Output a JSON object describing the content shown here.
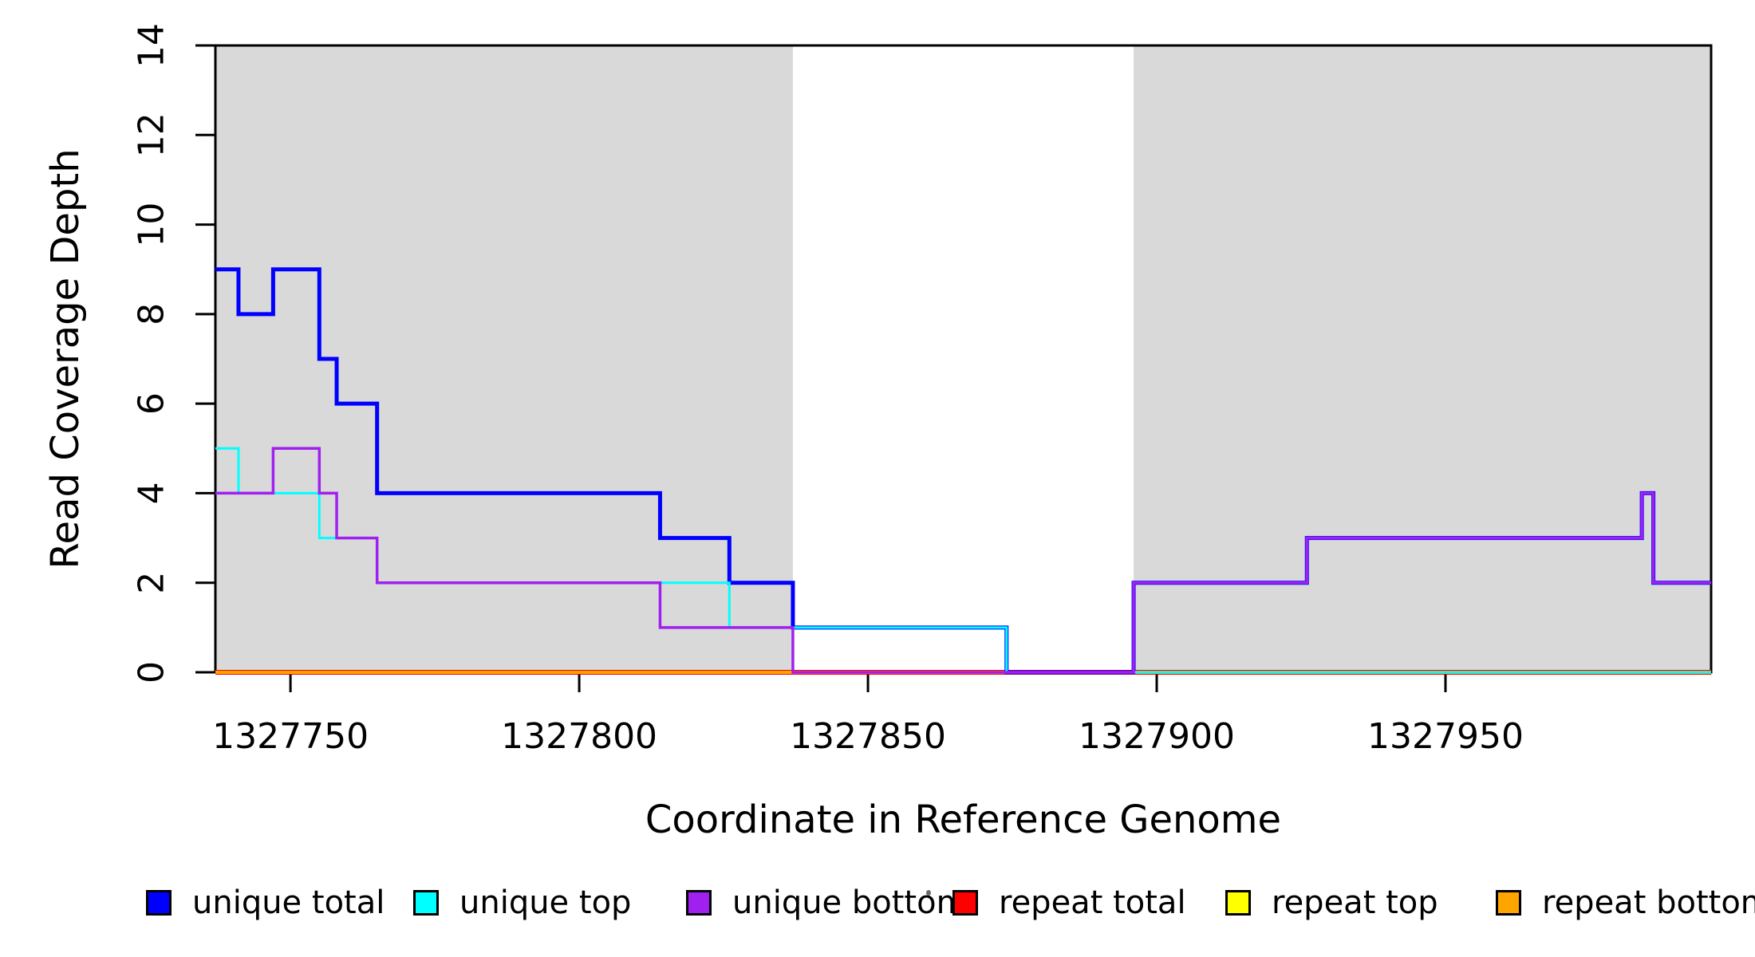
{
  "chart_data": {
    "type": "line",
    "subtype": "step-coverage",
    "title": "",
    "xlabel": "Coordinate in Reference Genome",
    "ylabel": "Read Coverage Depth",
    "xlim": [
      1327737,
      1327996
    ],
    "ylim": [
      0,
      14
    ],
    "x_ticks": [
      1327750,
      1327800,
      1327850,
      1327900,
      1327950
    ],
    "y_ticks": [
      0,
      2,
      4,
      6,
      8,
      10,
      12,
      14
    ],
    "grid": false,
    "legend_position": "bottom",
    "plot_background": "#ffffff",
    "shaded_region_color": "#d9d9d9",
    "shaded_regions": [
      {
        "x0": 1327737,
        "x1": 1327837
      },
      {
        "x0": 1327896,
        "x1": 1327996
      }
    ],
    "series": [
      {
        "name": "repeat total",
        "color": "#FF0000",
        "width": 6,
        "points": [
          [
            1327737,
            0
          ]
        ]
      },
      {
        "name": "repeat top",
        "color": "#FFFF00",
        "width": 3,
        "points": [
          [
            1327737,
            0
          ]
        ]
      },
      {
        "name": "repeat bottom",
        "color": "#FFA500",
        "width": 4,
        "points": [
          [
            1327737,
            0
          ]
        ]
      },
      {
        "name": "unique total",
        "color": "#0000FF",
        "width": 5,
        "points": [
          [
            1327737,
            9
          ],
          [
            1327741,
            8
          ],
          [
            1327747,
            9
          ],
          [
            1327755,
            7
          ],
          [
            1327758,
            6
          ],
          [
            1327765,
            4
          ],
          [
            1327814,
            3
          ],
          [
            1327826,
            2
          ],
          [
            1327837,
            1
          ],
          [
            1327874,
            0
          ],
          [
            1327896,
            2
          ],
          [
            1327926,
            3
          ],
          [
            1327984,
            4
          ],
          [
            1327986,
            2
          ]
        ]
      },
      {
        "name": "unique top",
        "color": "#00FFFF",
        "width": 3,
        "points": [
          [
            1327737,
            5
          ],
          [
            1327741,
            4
          ],
          [
            1327755,
            3
          ],
          [
            1327765,
            2
          ],
          [
            1327826,
            1
          ],
          [
            1327874,
            0
          ]
        ]
      },
      {
        "name": "unique bottom",
        "color": "#A020F0",
        "width": 3.5,
        "points": [
          [
            1327737,
            4
          ],
          [
            1327747,
            5
          ],
          [
            1327755,
            4
          ],
          [
            1327758,
            3
          ],
          [
            1327765,
            2
          ],
          [
            1327814,
            1
          ],
          [
            1327837,
            0
          ],
          [
            1327896,
            2
          ],
          [
            1327926,
            3
          ],
          [
            1327984,
            4
          ],
          [
            1327986,
            2
          ]
        ]
      }
    ]
  },
  "legend": {
    "items": [
      {
        "label": "unique total",
        "color": "#0000FF"
      },
      {
        "label": "unique top",
        "color": "#00FFFF"
      },
      {
        "label": "unique bottom",
        "color": "#A020F0"
      },
      {
        "label": "repeat total",
        "color": "#FF0000"
      },
      {
        "label": "repeat top",
        "color": "#FFFF00"
      },
      {
        "label": "repeat bottom",
        "color": "#FFA500"
      }
    ]
  }
}
